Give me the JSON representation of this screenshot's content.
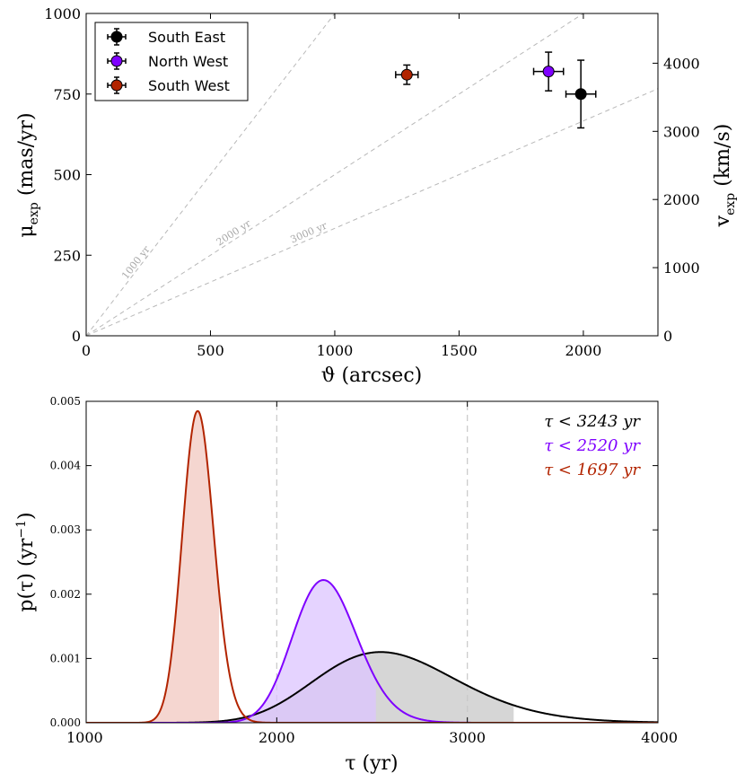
{
  "chart_data": [
    {
      "type": "scatter",
      "title": "",
      "xlabel": "ϑ (arcsec)",
      "ylabel": "μ_exp (mas/yr)",
      "ylabel_right": "v_exp (km/s)",
      "xlim": [
        0,
        2300
      ],
      "ylim": [
        0,
        1000
      ],
      "ylim_right": [
        0,
        4730
      ],
      "x_ticks": [
        "0",
        "500",
        "1000",
        "1500",
        "2000"
      ],
      "y_ticks": [
        "0",
        "250",
        "500",
        "750",
        "1000"
      ],
      "y_ticks_right": [
        "0",
        "1000",
        "2000",
        "3000",
        "4000"
      ],
      "grid": false,
      "legend_position": "top-left",
      "series": [
        {
          "name": "South East",
          "color": "#000000",
          "x": 1990,
          "y": 750,
          "xerr": 60,
          "yerr_low": 105,
          "yerr_high": 105
        },
        {
          "name": "North West",
          "color": "#7f00ff",
          "x": 1860,
          "y": 820,
          "xerr": 60,
          "yerr_low": 60,
          "yerr_high": 60
        },
        {
          "name": "South West",
          "color": "#b22400",
          "x": 1290,
          "y": 810,
          "xerr": 45,
          "yerr_low": 30,
          "yerr_high": 30
        }
      ],
      "age_lines": [
        {
          "label": "1000 yr",
          "age_yr": 1000
        },
        {
          "label": "2000 yr",
          "age_yr": 2000
        },
        {
          "label": "3000 yr",
          "age_yr": 3000
        }
      ]
    },
    {
      "type": "area",
      "title": "",
      "xlabel": "τ (yr)",
      "ylabel": "p(τ) (yr⁻¹)",
      "xlim": [
        1000,
        4000
      ],
      "ylim": [
        0,
        0.005
      ],
      "x_ticks": [
        "1000",
        "2000",
        "3000",
        "4000"
      ],
      "y_ticks": [
        "0.000",
        "0.001",
        "0.002",
        "0.003",
        "0.004",
        "0.005"
      ],
      "vlines": [
        2000,
        3000
      ],
      "grid": false,
      "series": [
        {
          "name": "South East",
          "color": "#000000",
          "fill": "#c8c8c8",
          "dist": "lognormal",
          "mode": 2545,
          "sigma": 0.145,
          "peak": 0.0011,
          "upper_limit": 3243,
          "annotation": "τ < 3243 yr"
        },
        {
          "name": "North West",
          "color": "#7f00ff",
          "fill": "#dcc4ff",
          "dist": "lognormal",
          "mode": 2245,
          "sigma": 0.075,
          "peak": 0.00222,
          "upper_limit": 2520,
          "annotation": "τ < 2520 yr"
        },
        {
          "name": "South West",
          "color": "#b22400",
          "fill": "#f2c8c0",
          "dist": "lognormal",
          "mode": 1585,
          "sigma": 0.052,
          "peak": 0.00485,
          "upper_limit": 1697,
          "annotation": "τ < 1697 yr"
        }
      ]
    }
  ]
}
